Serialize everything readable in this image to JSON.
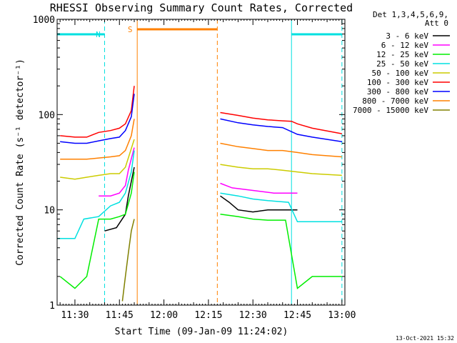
{
  "chart_data": {
    "type": "line",
    "title": "RHESSI Observing Summary Count Rates, Corrected",
    "xlabel": "Start Time (09-Jan-09 11:24:02)",
    "ylabel": "Corrected Count Rate (s⁻¹ detector⁻¹)",
    "y_scale": "log",
    "ylim": [
      1,
      1000
    ],
    "y_ticks": [
      1,
      10,
      100,
      1000
    ],
    "y_tick_labels": [
      "1",
      "10",
      "100",
      "1000"
    ],
    "x_range": [
      "11:24",
      "13:01"
    ],
    "x_ticks": [
      "11:30",
      "11:45",
      "12:00",
      "12:15",
      "12:30",
      "12:45",
      "13:00"
    ],
    "legend_header": [
      "Det 1,3,4,5,6,9,",
      "Att 0"
    ],
    "legend_position": "right",
    "timestamp": "13-Oct-2021 15:32",
    "grid": false,
    "series": [
      {
        "name": "3 - 6 keV",
        "color": "#000000",
        "x": [
          "11:40",
          "11:44",
          "11:47",
          "11:48",
          "11:50",
          "12:19",
          "12:22",
          "12:25",
          "12:30",
          "12:35",
          "12:40",
          "12:45"
        ],
        "values": [
          6,
          6.5,
          9,
          14,
          28,
          14,
          12,
          10,
          9.5,
          10,
          10,
          10
        ]
      },
      {
        "name": "6 - 12 keV",
        "color": "#ff00ff",
        "x": [
          "11:38",
          "11:42",
          "11:45",
          "11:47",
          "11:48",
          "11:50",
          "12:19",
          "12:23",
          "12:30",
          "12:37",
          "12:40",
          "12:45"
        ],
        "values": [
          14,
          14,
          15,
          18,
          26,
          45,
          19,
          17,
          16,
          15,
          15,
          15
        ]
      },
      {
        "name": "12 - 25 keV",
        "color": "#00ee00",
        "x": [
          "11:25",
          "11:30",
          "11:34",
          "11:38",
          "11:42",
          "11:45",
          "11:47",
          "11:49",
          "11:50",
          "12:19",
          "12:25",
          "12:30",
          "12:35",
          "12:41",
          "12:45",
          "12:50",
          "13:00"
        ],
        "values": [
          2,
          1.5,
          2,
          8,
          8,
          8.5,
          9,
          15,
          25,
          9,
          8.5,
          8,
          7.8,
          7.8,
          1.5,
          2,
          2
        ]
      },
      {
        "name": "25 - 50 keV",
        "color": "#00e0e0",
        "x": [
          "11:24",
          "11:30",
          "11:33",
          "11:38",
          "11:42",
          "11:45",
          "11:47",
          "11:49",
          "11:50",
          "12:19",
          "12:25",
          "12:30",
          "12:35",
          "12:42",
          "12:45",
          "12:50",
          "13:00"
        ],
        "values": [
          5,
          5,
          8,
          8.5,
          11,
          12,
          15,
          25,
          42,
          15,
          14,
          13,
          12.5,
          12,
          7.5,
          7.5,
          7.5
        ]
      },
      {
        "name": "50 - 100 keV",
        "color": "#cccc00",
        "x": [
          "11:25",
          "11:30",
          "11:34",
          "11:38",
          "11:42",
          "11:45",
          "11:47",
          "11:50",
          "12:19",
          "12:25",
          "12:30",
          "12:35",
          "12:40",
          "12:45",
          "12:50",
          "13:00"
        ],
        "values": [
          22,
          21,
          22,
          23,
          24,
          24,
          28,
          55,
          30,
          28,
          27,
          27,
          26,
          25,
          24,
          23
        ]
      },
      {
        "name": "100 - 300 keV",
        "color": "#ff0000",
        "x": [
          "11:25",
          "11:30",
          "11:34",
          "11:38",
          "11:42",
          "11:45",
          "11:47",
          "11:49",
          "11:50",
          "12:19",
          "12:25",
          "12:30",
          "12:35",
          "12:40",
          "12:43",
          "12:45",
          "12:50",
          "13:00"
        ],
        "values": [
          60,
          58,
          58,
          65,
          68,
          72,
          80,
          110,
          200,
          105,
          98,
          92,
          88,
          86,
          85,
          80,
          72,
          63
        ]
      },
      {
        "name": "300 - 800 keV",
        "color": "#0000ff",
        "x": [
          "11:25",
          "11:30",
          "11:34",
          "11:38",
          "11:42",
          "11:45",
          "11:47",
          "11:49",
          "11:50",
          "12:19",
          "12:25",
          "12:30",
          "12:35",
          "12:40",
          "12:45",
          "12:50",
          "13:00"
        ],
        "values": [
          52,
          50,
          50,
          53,
          56,
          58,
          68,
          95,
          165,
          90,
          82,
          78,
          75,
          73,
          62,
          58,
          52
        ]
      },
      {
        "name": "800 - 7000 keV",
        "color": "#ff8000",
        "x": [
          "11:25",
          "11:30",
          "11:34",
          "11:38",
          "11:42",
          "11:45",
          "11:47",
          "11:49",
          "11:50",
          "12:19",
          "12:25",
          "12:30",
          "12:35",
          "12:40",
          "12:45",
          "12:50",
          "13:00"
        ],
        "values": [
          34,
          34,
          34,
          35,
          36,
          37,
          42,
          60,
          90,
          50,
          46,
          44,
          42,
          42,
          40,
          38,
          36
        ]
      },
      {
        "name": "7000 - 15000 keV",
        "color": "#808000",
        "x": [
          "11:46",
          "11:47",
          "11:48",
          "11:49",
          "11:50"
        ],
        "values": [
          1.1,
          2,
          3.5,
          6,
          8
        ]
      }
    ],
    "annotations": [
      {
        "label": "N",
        "kind": "night",
        "color": "#00e0e0",
        "x_start": "11:24",
        "x_end": "11:40"
      },
      {
        "label": "S",
        "kind": "SAA",
        "color": "#ff8000",
        "x_start": "11:51",
        "x_end": "12:18"
      },
      {
        "label": "",
        "kind": "night",
        "color": "#00e0e0",
        "x_start": "12:43",
        "x_end": "13:00"
      }
    ]
  }
}
